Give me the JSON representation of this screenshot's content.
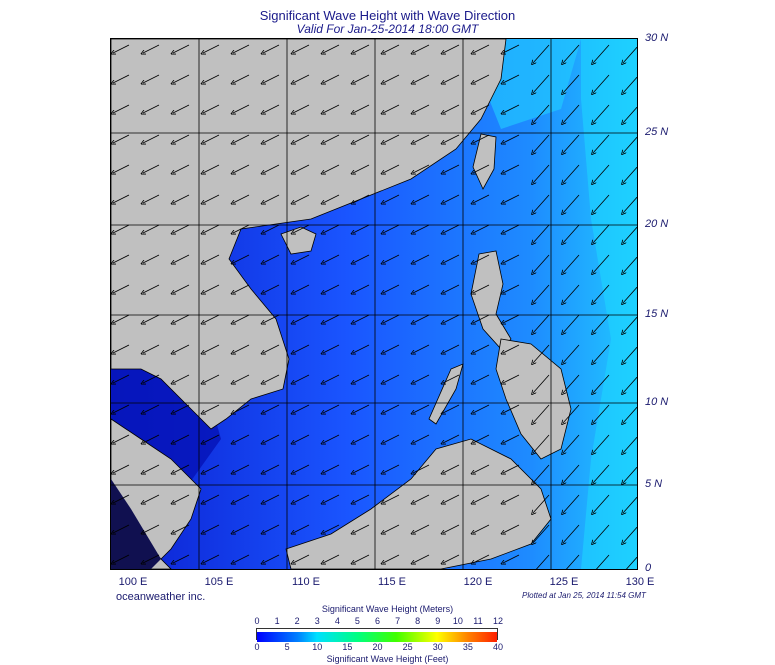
{
  "header": {
    "title": "Significant Wave Height with Wave Direction",
    "subtitle": "Valid For Jan-25-2014 18:00 GMT"
  },
  "axes": {
    "lat_labels": [
      "30 N",
      "25 N",
      "20 N",
      "15 N",
      "10 N",
      "5 N",
      "0"
    ],
    "lon_labels": [
      "100 E",
      "105 E",
      "110 E",
      "115 E",
      "120 E",
      "125 E",
      "130 E"
    ]
  },
  "footer": {
    "credit": "oceanweather inc.",
    "plotted": "Plotted at Jan 25, 2014 11:54 GMT"
  },
  "legend": {
    "top_title": "Significant Wave Height (Meters)",
    "bottom_title": "Significant Wave Height (Feet)",
    "meters_ticks": [
      "0",
      "1",
      "2",
      "3",
      "4",
      "5",
      "6",
      "7",
      "8",
      "9",
      "10",
      "11",
      "12"
    ],
    "feet_ticks": [
      "0",
      "5",
      "10",
      "15",
      "20",
      "25",
      "30",
      "35",
      "40"
    ]
  },
  "colors": {
    "land": "#c0c0c0",
    "sea_low": "#0a1fd6",
    "sea_mid": "#1e6cff",
    "sea_high": "#1ed9ff"
  }
}
